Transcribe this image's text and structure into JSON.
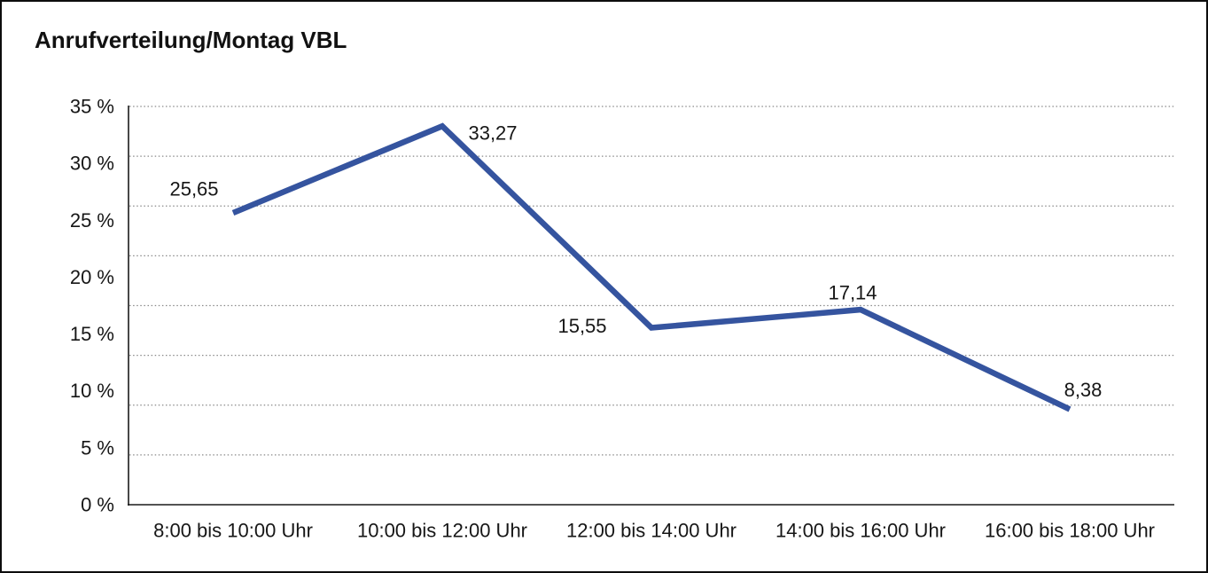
{
  "window": {
    "title": "Anrufverteilung/Montag VBL"
  },
  "chart_data": {
    "type": "line",
    "title": "Anrufverteilung/Montag VBL",
    "categories": [
      "8:00 bis 10:00 Uhr",
      "10:00 bis 12:00 Uhr",
      "12:00 bis 14:00 Uhr",
      "14:00 bis 16:00 Uhr",
      "16:00 bis 18:00 Uhr"
    ],
    "values": [
      25.65,
      33.27,
      15.55,
      17.14,
      8.38
    ],
    "point_labels": [
      "25,65",
      "33,27",
      "15,55",
      "17,14",
      "8,38"
    ],
    "y_ticks": [
      "35 %",
      "30 %",
      "25 %",
      "20 %",
      "15 %",
      "10 %",
      "5 %",
      "0 %"
    ],
    "y_tick_values": [
      35,
      30,
      25,
      20,
      15,
      10,
      5,
      0
    ],
    "ylim": [
      0,
      35
    ],
    "xlabel": "",
    "ylabel": "",
    "legend": "none",
    "grid": "horizontal-dotted",
    "gridline_count": 8,
    "line_color": "#35549F",
    "grid_color": "#8a8a8a",
    "axis_color": "#1a1a1a",
    "text_color": "#161616"
  }
}
